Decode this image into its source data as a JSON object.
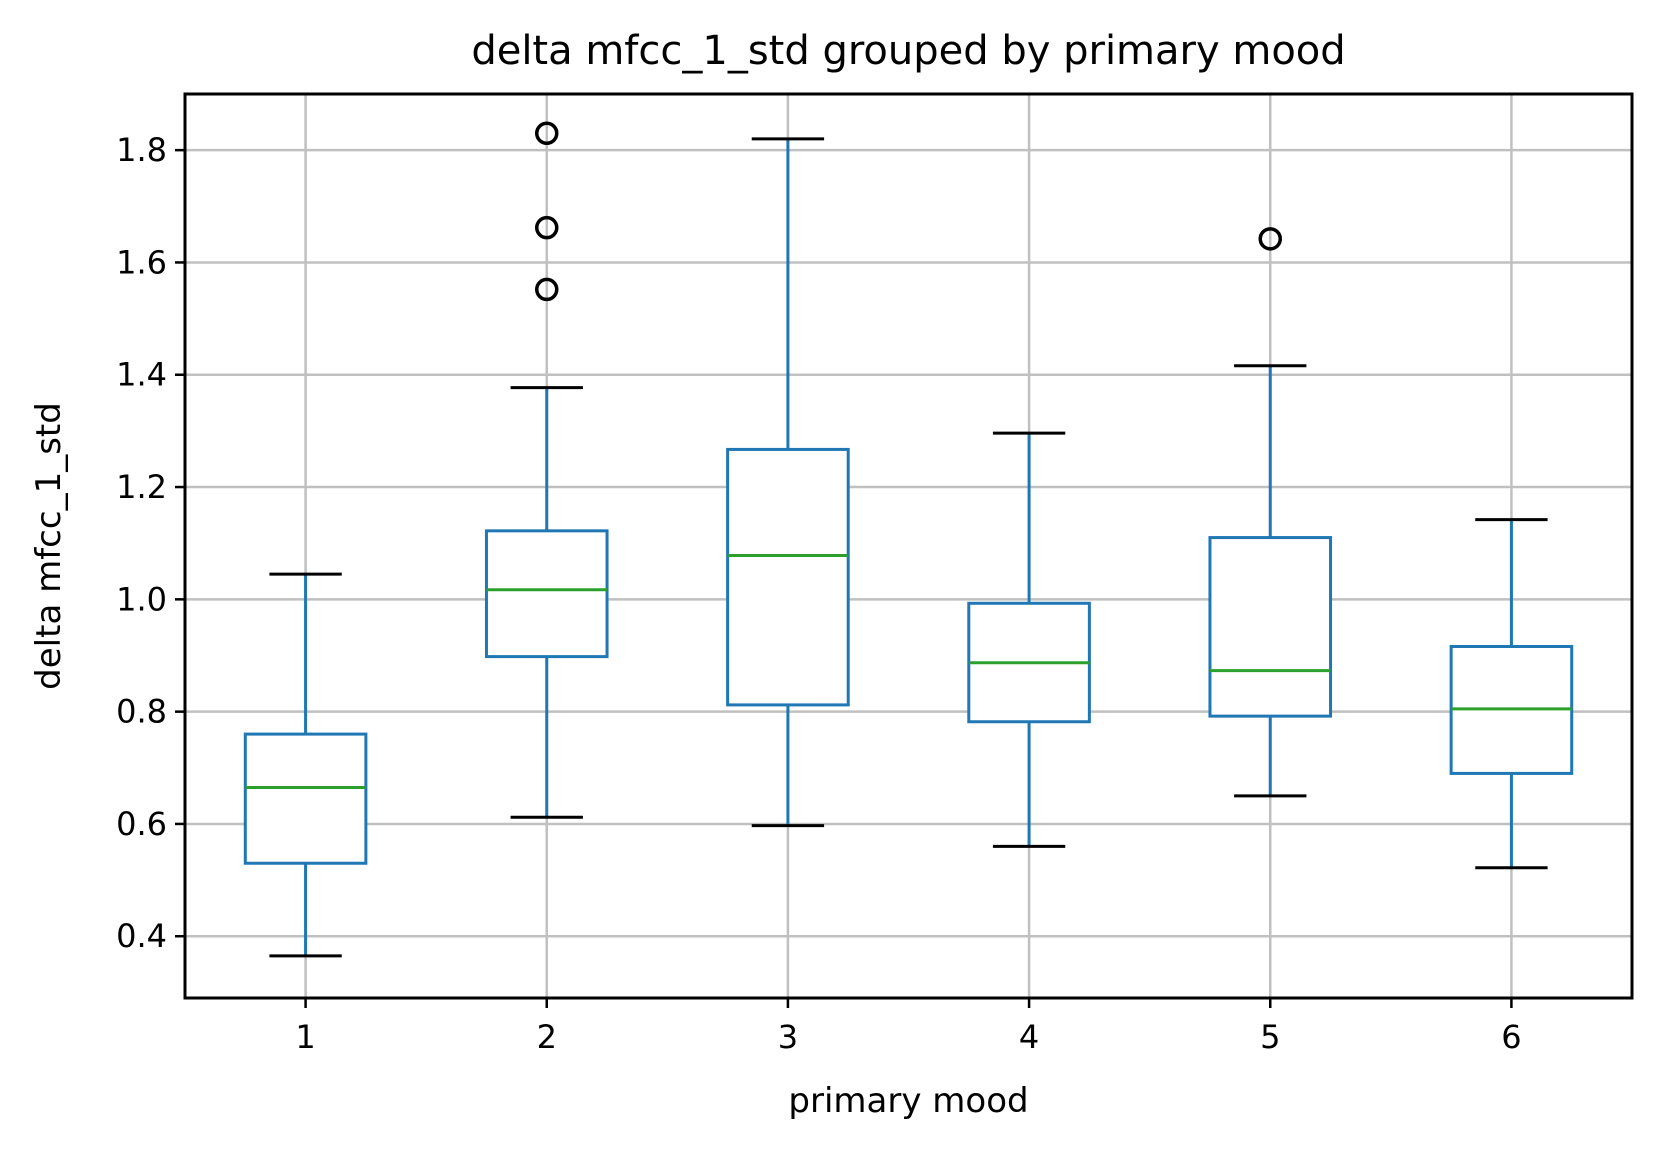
{
  "chart_data": {
    "type": "box",
    "title": "delta mfcc_1_std grouped by primary mood",
    "xlabel": "primary mood",
    "ylabel": "delta mfcc_1_std",
    "categories": [
      "1",
      "2",
      "3",
      "4",
      "5",
      "6"
    ],
    "ylim": [
      0.29,
      1.9
    ],
    "yticks": [
      "0.4",
      "0.6",
      "0.8",
      "1.0",
      "1.2",
      "1.4",
      "1.6",
      "1.8"
    ],
    "grid": true,
    "boxes": [
      {
        "category": "1",
        "whisker_low": 0.365,
        "q1": 0.53,
        "median": 0.665,
        "q3": 0.76,
        "whisker_high": 1.045,
        "outliers": []
      },
      {
        "category": "2",
        "whisker_low": 0.612,
        "q1": 0.898,
        "median": 1.017,
        "q3": 1.122,
        "whisker_high": 1.377,
        "outliers": [
          1.83,
          1.662,
          1.552
        ]
      },
      {
        "category": "3",
        "whisker_low": 0.597,
        "q1": 0.812,
        "median": 1.078,
        "q3": 1.267,
        "whisker_high": 1.82,
        "outliers": []
      },
      {
        "category": "4",
        "whisker_low": 0.56,
        "q1": 0.782,
        "median": 0.887,
        "q3": 0.993,
        "whisker_high": 1.296,
        "outliers": []
      },
      {
        "category": "5",
        "whisker_low": 0.65,
        "q1": 0.792,
        "median": 0.873,
        "q3": 1.11,
        "whisker_high": 1.416,
        "outliers": [
          1.642
        ]
      },
      {
        "category": "6",
        "whisker_low": 0.522,
        "q1": 0.69,
        "median": 0.805,
        "q3": 0.916,
        "whisker_high": 1.142,
        "outliers": []
      }
    ],
    "colors": {
      "box": "#1f77b4",
      "median": "#2ca02c",
      "caps": "#000000",
      "outliers": "#000000",
      "grid": "#c0c0c0"
    }
  }
}
